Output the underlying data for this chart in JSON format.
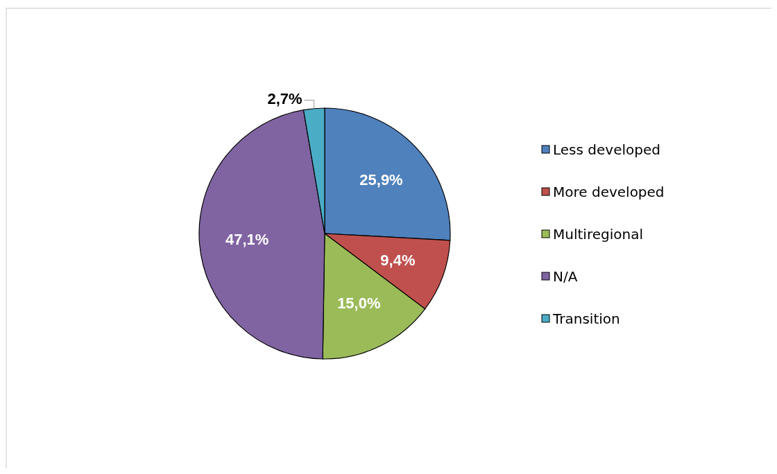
{
  "chart_data": {
    "type": "pie",
    "categories": [
      "Less developed",
      "More developed",
      "Multiregional",
      "N/A",
      "Transition"
    ],
    "values": [
      25.9,
      9.4,
      15.0,
      47.1,
      2.7
    ],
    "colors": [
      "#4f81bd",
      "#c0504d",
      "#9bbb59",
      "#8064a2",
      "#4bacc6"
    ],
    "value_labels": [
      "25,9%",
      "9,4%",
      "15,0%",
      "47,1%",
      "2,7%"
    ],
    "legend": "right"
  }
}
